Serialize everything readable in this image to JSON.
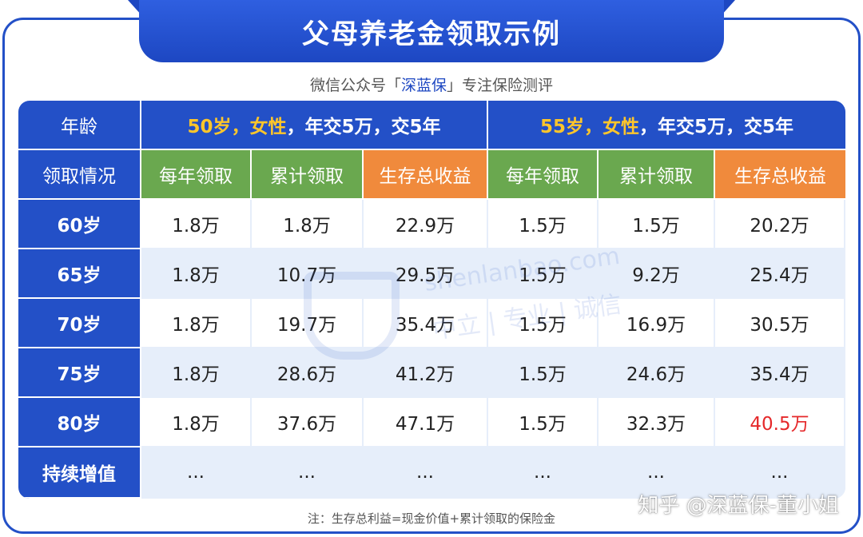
{
  "title": "父母养老金领取示例",
  "subtitle": {
    "prefix": "微信公众号「",
    "brand": "深蓝保",
    "suffix": "」专注保险测评"
  },
  "table": {
    "header_row1": {
      "col0": "年龄",
      "group1": {
        "highlight": "50岁，女性",
        "rest": "，年交5万，交5年"
      },
      "group2": {
        "highlight": "55岁，女性",
        "rest": "，年交5万，交5年"
      }
    },
    "header_row2": {
      "col0": "领取情况",
      "cols": [
        "每年领取",
        "累计领取",
        "生存总收益",
        "每年领取",
        "累计领取",
        "生存总收益"
      ]
    },
    "rows": [
      {
        "age": "60岁",
        "values": [
          "1.8万",
          "1.8万",
          "22.9万",
          "1.5万",
          "1.5万",
          "20.2万"
        ]
      },
      {
        "age": "65岁",
        "values": [
          "1.8万",
          "10.7万",
          "29.5万",
          "1.5万",
          "9.2万",
          "25.4万"
        ]
      },
      {
        "age": "70岁",
        "values": [
          "1.8万",
          "19.7万",
          "35.4万",
          "1.5万",
          "16.9万",
          "30.5万"
        ]
      },
      {
        "age": "75岁",
        "values": [
          "1.8万",
          "28.6万",
          "41.2万",
          "1.5万",
          "24.6万",
          "35.4万"
        ]
      },
      {
        "age": "80岁",
        "values": [
          "1.8万",
          "37.6万",
          "47.1万",
          "1.5万",
          "32.3万",
          "40.5万"
        ]
      },
      {
        "age": "持续增值",
        "values": [
          "...",
          "...",
          "...",
          "...",
          "...",
          "..."
        ]
      }
    ]
  },
  "watermark": {
    "url": "shenlanbao.com",
    "slogan": "中立 | 专业 | 诚信",
    "logo": "深蓝保"
  },
  "note": "注：生存总利益=现金价值+累计领取的保险金",
  "credit": "知乎 @深蓝保-董小姐",
  "colors": {
    "primary": "#2350c7",
    "green": "#6aa84f",
    "orange": "#f08a3c",
    "highlight": "#ffc62a",
    "alt_row": "#e6eefa",
    "red": "#e5282a"
  }
}
